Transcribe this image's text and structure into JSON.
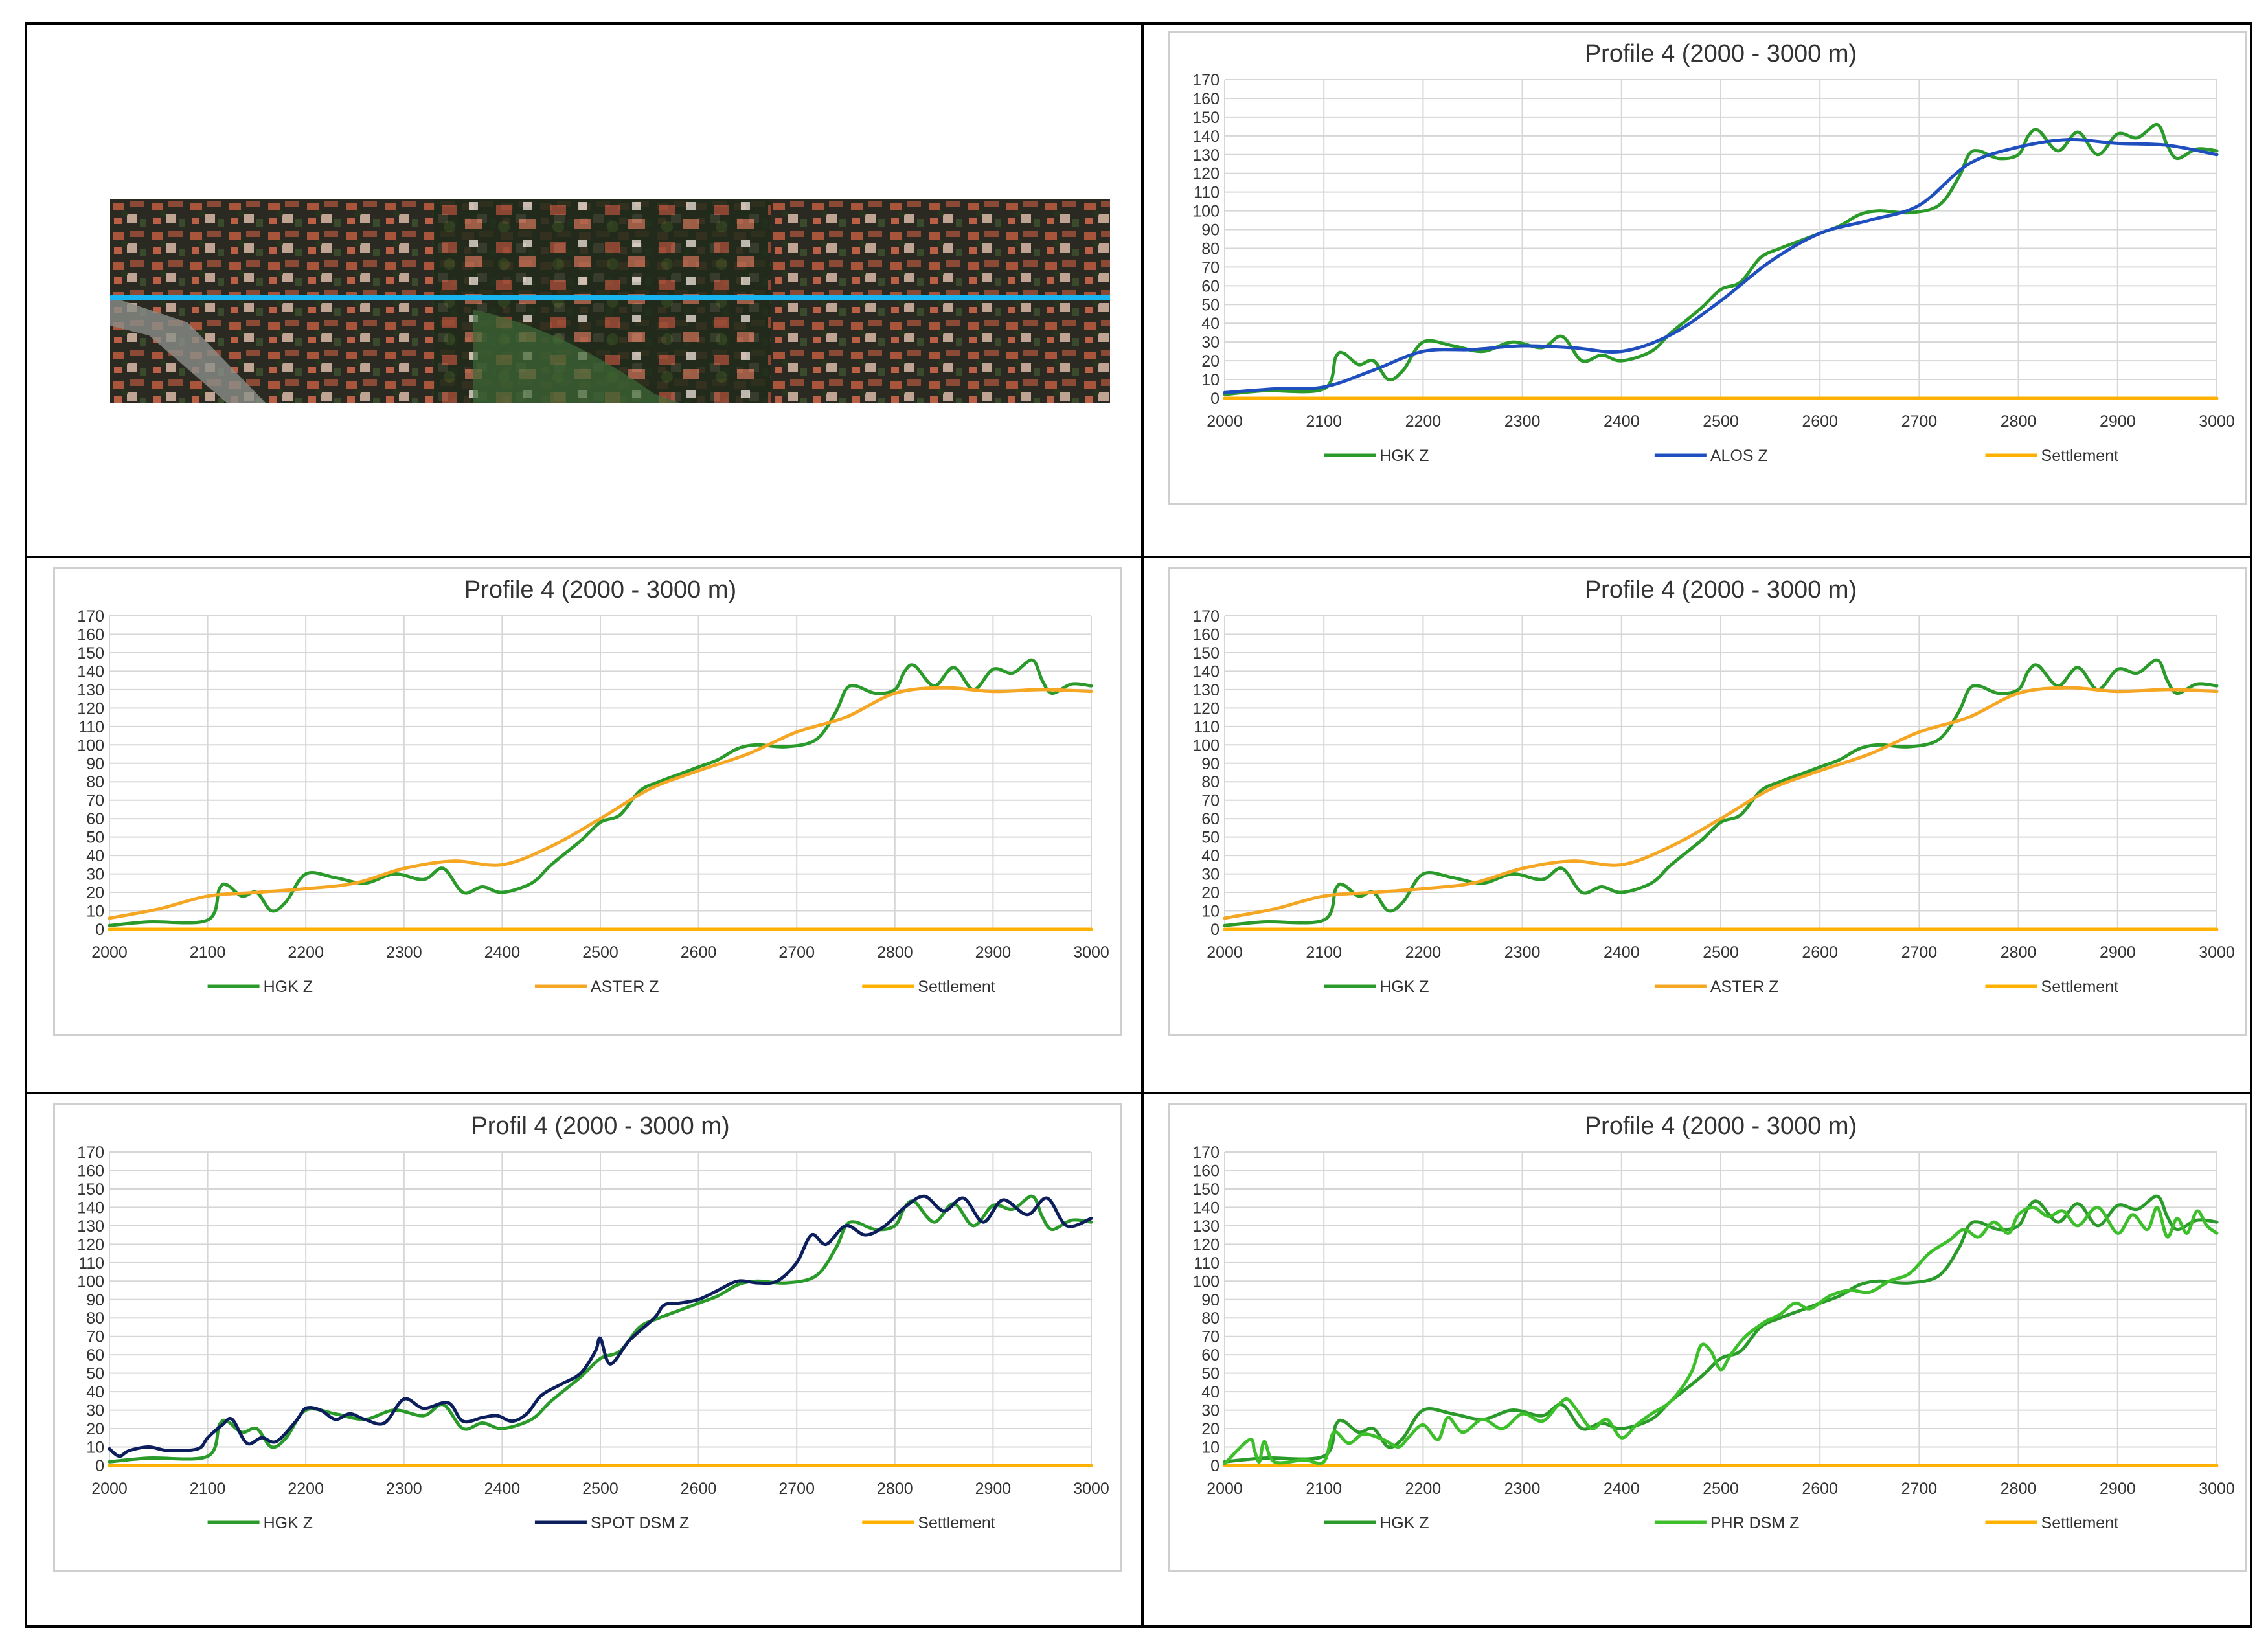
{
  "panels": [
    {
      "title": "Profile 4 (2000 - 3000 m)",
      "series": [
        {
          "name": "HGK Z",
          "color": "#2a9a2a",
          "ref": "hgk"
        },
        {
          "name": "ALOS Z",
          "color": "#1f4fbf",
          "ref": "alos"
        },
        {
          "name": "Settlement",
          "color": "#ffb000",
          "ref": "settle"
        }
      ]
    },
    {
      "title": "Profile 4 (2000 - 3000 m)",
      "series": [
        {
          "name": "HGK Z",
          "color": "#2a9a2a",
          "ref": "hgk"
        },
        {
          "name": "ASTER Z",
          "color": "#f5a623",
          "ref": "aster"
        },
        {
          "name": "Settlement",
          "color": "#ffb000",
          "ref": "settle"
        }
      ]
    },
    {
      "title": "Profile 4 (2000 - 3000 m)",
      "series": [
        {
          "name": "HGK Z",
          "color": "#2a9a2a",
          "ref": "hgk"
        },
        {
          "name": "ASTER Z",
          "color": "#f5a623",
          "ref": "aster"
        },
        {
          "name": "Settlement",
          "color": "#ffb000",
          "ref": "settle"
        }
      ]
    },
    {
      "title": "Profil 4 (2000 - 3000 m)",
      "series": [
        {
          "name": "HGK Z",
          "color": "#2a9a2a",
          "ref": "hgk"
        },
        {
          "name": "SPOT DSM Z",
          "color": "#0c1f5c",
          "ref": "spot"
        },
        {
          "name": "Settlement",
          "color": "#ffb000",
          "ref": "settle"
        }
      ]
    },
    {
      "title": "Profile 4 (2000 - 3000 m)",
      "series": [
        {
          "name": "HGK Z",
          "color": "#2a9a2a",
          "ref": "hgk"
        },
        {
          "name": "PHR DSM Z",
          "color": "#3cbf2a",
          "ref": "phr"
        },
        {
          "name": "Settlement",
          "color": "#ffb000",
          "ref": "settle"
        }
      ]
    }
  ],
  "chart_data": {
    "type": "line",
    "x_ticks": [
      2000,
      2100,
      2200,
      2300,
      2400,
      2500,
      2600,
      2700,
      2800,
      2900,
      3000
    ],
    "y_ticks": [
      0,
      10,
      20,
      30,
      40,
      50,
      60,
      70,
      80,
      90,
      100,
      110,
      120,
      130,
      140,
      150,
      160,
      170
    ],
    "xlim": [
      2000,
      3000
    ],
    "ylim": [
      0,
      170
    ],
    "grid": true,
    "legend": "bottom",
    "series": {
      "hgk": {
        "x": [
          2000,
          2040,
          2100,
          2112,
          2120,
          2135,
          2150,
          2165,
          2180,
          2200,
          2230,
          2260,
          2290,
          2320,
          2340,
          2360,
          2380,
          2400,
          2430,
          2450,
          2480,
          2500,
          2520,
          2540,
          2560,
          2580,
          2600,
          2620,
          2640,
          2660,
          2690,
          2720,
          2740,
          2750,
          2760,
          2780,
          2800,
          2810,
          2820,
          2840,
          2860,
          2880,
          2900,
          2920,
          2940,
          2950,
          2960,
          2980,
          3000
        ],
        "y": [
          2,
          4,
          5,
          22,
          24,
          18,
          20,
          10,
          15,
          30,
          28,
          25,
          30,
          27,
          33,
          20,
          23,
          20,
          25,
          35,
          48,
          58,
          62,
          75,
          80,
          84,
          88,
          92,
          98,
          100,
          99,
          103,
          118,
          130,
          132,
          128,
          130,
          140,
          143,
          132,
          142,
          130,
          141,
          139,
          146,
          135,
          128,
          133,
          132
        ]
      },
      "alos": {
        "x": [
          2000,
          2050,
          2100,
          2150,
          2200,
          2250,
          2300,
          2350,
          2400,
          2450,
          2500,
          2550,
          2600,
          2650,
          2700,
          2750,
          2800,
          2850,
          2900,
          2950,
          3000
        ],
        "y": [
          3,
          5,
          6,
          15,
          25,
          26,
          28,
          27,
          25,
          34,
          52,
          73,
          88,
          95,
          103,
          125,
          134,
          138,
          136,
          135,
          130
        ]
      },
      "aster": {
        "x": [
          2000,
          2050,
          2100,
          2150,
          2200,
          2250,
          2300,
          2350,
          2400,
          2450,
          2500,
          2550,
          2600,
          2650,
          2700,
          2750,
          2800,
          2850,
          2900,
          2950,
          3000
        ],
        "y": [
          6,
          11,
          18,
          20,
          22,
          25,
          33,
          37,
          35,
          45,
          60,
          76,
          86,
          95,
          107,
          115,
          128,
          131,
          129,
          130,
          129
        ]
      },
      "spot": {
        "x": [
          2000,
          2010,
          2020,
          2040,
          2060,
          2090,
          2100,
          2115,
          2125,
          2140,
          2155,
          2170,
          2190,
          2200,
          2215,
          2230,
          2245,
          2260,
          2280,
          2300,
          2320,
          2345,
          2360,
          2380,
          2395,
          2410,
          2425,
          2440,
          2460,
          2480,
          2495,
          2500,
          2510,
          2530,
          2555,
          2565,
          2580,
          2600,
          2620,
          2640,
          2660,
          2680,
          2700,
          2715,
          2730,
          2750,
          2770,
          2790,
          2810,
          2830,
          2850,
          2870,
          2890,
          2910,
          2935,
          2955,
          2975,
          3000
        ],
        "y": [
          9,
          5,
          8,
          10,
          8,
          9,
          15,
          22,
          25,
          12,
          15,
          13,
          24,
          31,
          30,
          25,
          28,
          25,
          23,
          36,
          31,
          34,
          24,
          26,
          27,
          24,
          28,
          38,
          44,
          50,
          62,
          69,
          55,
          68,
          80,
          87,
          88,
          90,
          95,
          100,
          99,
          100,
          110,
          125,
          120,
          130,
          125,
          130,
          140,
          146,
          138,
          145,
          132,
          144,
          136,
          145,
          130,
          134
        ]
      },
      "phr": {
        "x": [
          2000,
          2025,
          2030,
          2035,
          2040,
          2050,
          2080,
          2100,
          2110,
          2125,
          2140,
          2160,
          2175,
          2185,
          2200,
          2215,
          2225,
          2240,
          2260,
          2280,
          2300,
          2320,
          2335,
          2345,
          2355,
          2370,
          2385,
          2400,
          2415,
          2430,
          2450,
          2470,
          2480,
          2490,
          2500,
          2510,
          2525,
          2545,
          2560,
          2575,
          2590,
          2610,
          2630,
          2650,
          2670,
          2690,
          2710,
          2730,
          2745,
          2760,
          2775,
          2790,
          2800,
          2815,
          2830,
          2845,
          2860,
          2880,
          2900,
          2915,
          2930,
          2940,
          2950,
          2960,
          2970,
          2980,
          2990,
          3000
        ],
        "y": [
          1,
          14,
          8,
          2,
          13,
          2,
          3,
          2,
          18,
          12,
          17,
          14,
          10,
          15,
          22,
          14,
          26,
          18,
          25,
          20,
          28,
          24,
          32,
          36,
          30,
          20,
          25,
          15,
          22,
          28,
          35,
          50,
          65,
          62,
          52,
          60,
          70,
          78,
          82,
          88,
          85,
          92,
          95,
          94,
          100,
          104,
          115,
          122,
          128,
          124,
          132,
          126,
          136,
          140,
          135,
          138,
          130,
          140,
          126,
          136,
          128,
          140,
          124,
          134,
          126,
          138,
          130,
          126
        ]
      },
      "settle": {
        "x": [
          2000,
          3000
        ],
        "y": [
          0,
          0
        ]
      }
    }
  }
}
